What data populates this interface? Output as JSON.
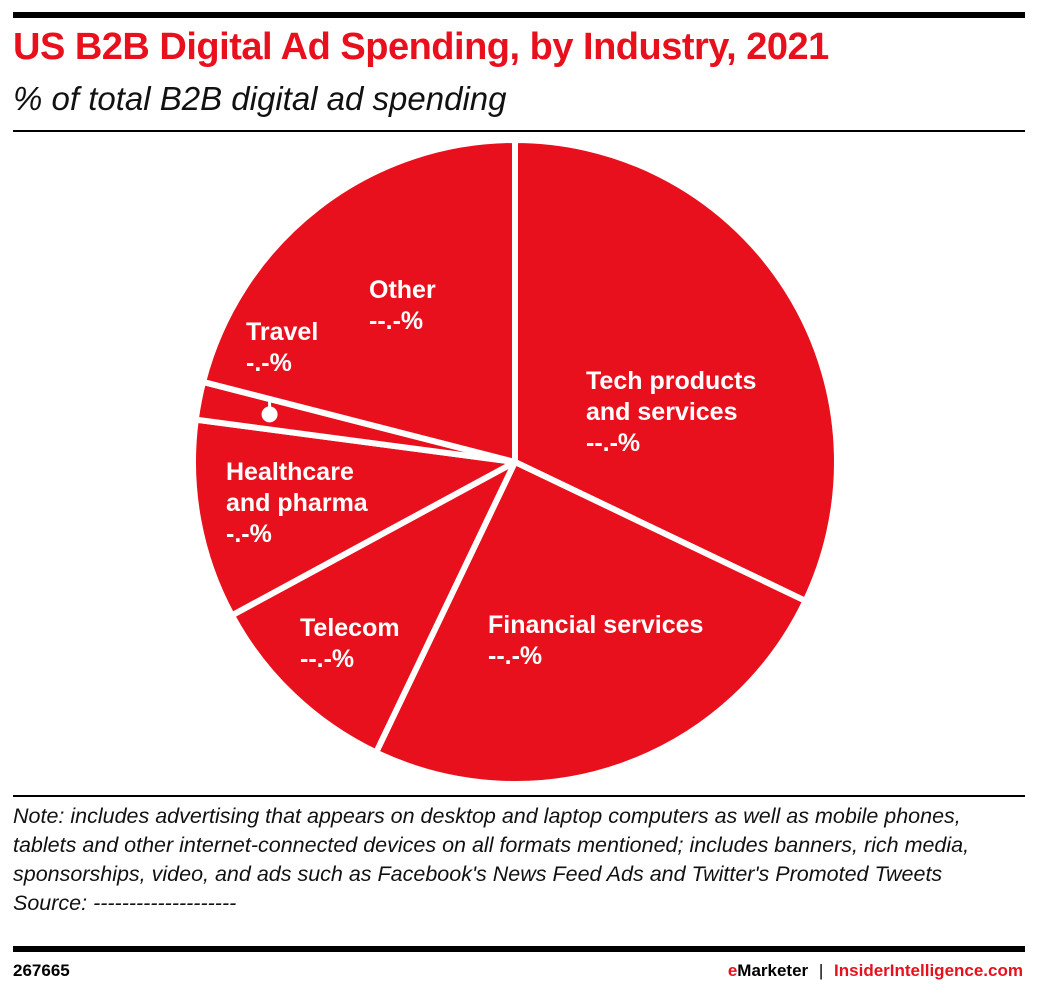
{
  "header": {
    "title": "US B2B Digital Ad Spending, by Industry, 2021",
    "subtitle": "% of total B2B digital ad spending"
  },
  "chart_data": {
    "type": "pie",
    "title": "US B2B Digital Ad Spending, by Industry, 2021",
    "subtitle": "% of total B2B digital ad spending",
    "color": "#e8101c",
    "slices": [
      {
        "label": "Tech products and services",
        "display": "--.-%",
        "value": 32.1
      },
      {
        "label": "Financial services",
        "display": "--.-%",
        "value": 25.0
      },
      {
        "label": "Telecom",
        "display": "--.-%",
        "value": 10.0
      },
      {
        "label": "Healthcare and pharma",
        "display": "-.-%",
        "value": 10.0
      },
      {
        "label": "Travel",
        "display": "-.-%",
        "value": 1.9
      },
      {
        "label": "Other",
        "display": "--.-%",
        "value": 21.0
      }
    ]
  },
  "labels": {
    "tech_1": "Tech products",
    "tech_2": "and services",
    "health_1": "Healthcare",
    "health_2": "and pharma"
  },
  "footer": {
    "note": "Note: includes advertising that appears on desktop and laptop computers as well as mobile phones, tablets and other internet-connected devices on all formats mentioned; includes banners, rich media, sponsorships, video, and ads such as Facebook's News Feed Ads and Twitter's Promoted Tweets",
    "source": "Source: --------------------",
    "id": "267665",
    "brand1": "eMarketer",
    "sep": "|",
    "brand2": "InsiderIntelligence.com"
  }
}
